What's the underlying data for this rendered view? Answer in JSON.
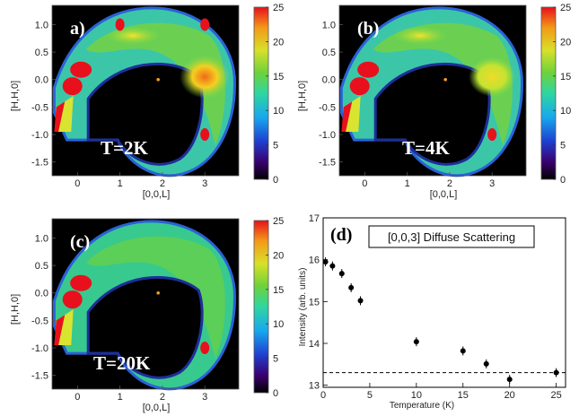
{
  "panels": [
    {
      "label": "a)",
      "temperature": "T=2K",
      "xticks": [
        "0",
        "1",
        "2",
        "3"
      ],
      "yticks": [
        "1.0",
        "0.5",
        "0.0",
        "-0.5",
        "-1.0",
        "-1.5"
      ],
      "xlabel": "[0,0,L]",
      "ylabel": "[H,H,0]",
      "colorbar": {
        "ticks": [
          "25",
          "20",
          "15",
          "10",
          "5",
          "0"
        ]
      }
    },
    {
      "label": "(b)",
      "temperature": "T=4K",
      "xticks": [
        "0",
        "1",
        "2",
        "3"
      ],
      "yticks": [
        "1.0",
        "0.5",
        "0.0",
        "-0.5",
        "-1.0",
        "-1.5"
      ],
      "xlabel": "[0,0,L]",
      "ylabel": "[H,H,0]",
      "colorbar": {
        "ticks": [
          "25",
          "20",
          "15",
          "10",
          "5",
          "0"
        ]
      }
    },
    {
      "label": "(c)",
      "temperature": "T=20K",
      "xticks": [
        "0",
        "1",
        "2",
        "3"
      ],
      "yticks": [
        "1.0",
        "0.5",
        "0.0",
        "-0.5",
        "-1.0",
        "-1.5"
      ],
      "xlabel": "[0,0,L]",
      "ylabel": "[H,H,0]",
      "colorbar": {
        "ticks": [
          "25",
          "20",
          "15",
          "10",
          "5",
          "0"
        ]
      }
    }
  ],
  "chart_data": [
    {
      "type": "heatmap",
      "panel": "a)",
      "subtitle": "T=2K",
      "xlabel": "[0,0,L]",
      "ylabel": "[H,H,0]",
      "xlim": [
        -0.6,
        3.8
      ],
      "ylim": [
        -1.75,
        1.35
      ],
      "colorbar_range": [
        0,
        25
      ],
      "colormap": "jet",
      "features": [
        {
          "L": 0.0,
          "HH": 0.0,
          "intensity": 25
        },
        {
          "L": 1.0,
          "HH": 1.0,
          "intensity": 25
        },
        {
          "L": 3.0,
          "HH": 1.0,
          "intensity": 25
        },
        {
          "L": 3.0,
          "HH": -1.0,
          "intensity": 25
        },
        {
          "L": 3.0,
          "HH": 0.0,
          "intensity": 21
        }
      ]
    },
    {
      "type": "heatmap",
      "panel": "(b)",
      "subtitle": "T=4K",
      "xlabel": "[0,0,L]",
      "ylabel": "[H,H,0]",
      "xlim": [
        -0.6,
        3.8
      ],
      "ylim": [
        -1.75,
        1.35
      ],
      "colorbar_range": [
        0,
        25
      ],
      "colormap": "jet",
      "features": [
        {
          "L": 0.0,
          "HH": 0.0,
          "intensity": 25
        },
        {
          "L": 3.0,
          "HH": -1.0,
          "intensity": 25
        },
        {
          "L": 3.0,
          "HH": 0.0,
          "intensity": 19
        }
      ]
    },
    {
      "type": "heatmap",
      "panel": "(c)",
      "subtitle": "T=20K",
      "xlabel": "[0,0,L]",
      "ylabel": "[H,H,0]",
      "xlim": [
        -0.6,
        3.8
      ],
      "ylim": [
        -1.75,
        1.35
      ],
      "colorbar_range": [
        0,
        25
      ],
      "colormap": "jet",
      "features": [
        {
          "L": 0.0,
          "HH": 0.0,
          "intensity": 25
        },
        {
          "L": 3.0,
          "HH": -1.0,
          "intensity": 25
        },
        {
          "L": 3.0,
          "HH": 0.0,
          "intensity": 15
        }
      ]
    },
    {
      "type": "scatter",
      "panel": "(d)",
      "legend": "[0,0,3] Diffuse Scattering",
      "xlabel": "Temperature (K)",
      "ylabel": "Intensity (arb. units)",
      "xlim": [
        0,
        26
      ],
      "ylim": [
        12.95,
        17
      ],
      "xticks": [
        "0",
        "5",
        "10",
        "15",
        "20",
        "25"
      ],
      "yticks": [
        "13",
        "14",
        "15",
        "16",
        "17"
      ],
      "reference_line": 13.3,
      "points": [
        {
          "x": 0.25,
          "y": 15.95
        },
        {
          "x": 1.0,
          "y": 15.85
        },
        {
          "x": 2.0,
          "y": 15.67
        },
        {
          "x": 3.0,
          "y": 15.33
        },
        {
          "x": 4.0,
          "y": 15.02
        },
        {
          "x": 10.0,
          "y": 14.04
        },
        {
          "x": 15.0,
          "y": 13.82
        },
        {
          "x": 17.5,
          "y": 13.51
        },
        {
          "x": 20.0,
          "y": 13.14
        },
        {
          "x": 25.0,
          "y": 13.3
        }
      ]
    }
  ]
}
